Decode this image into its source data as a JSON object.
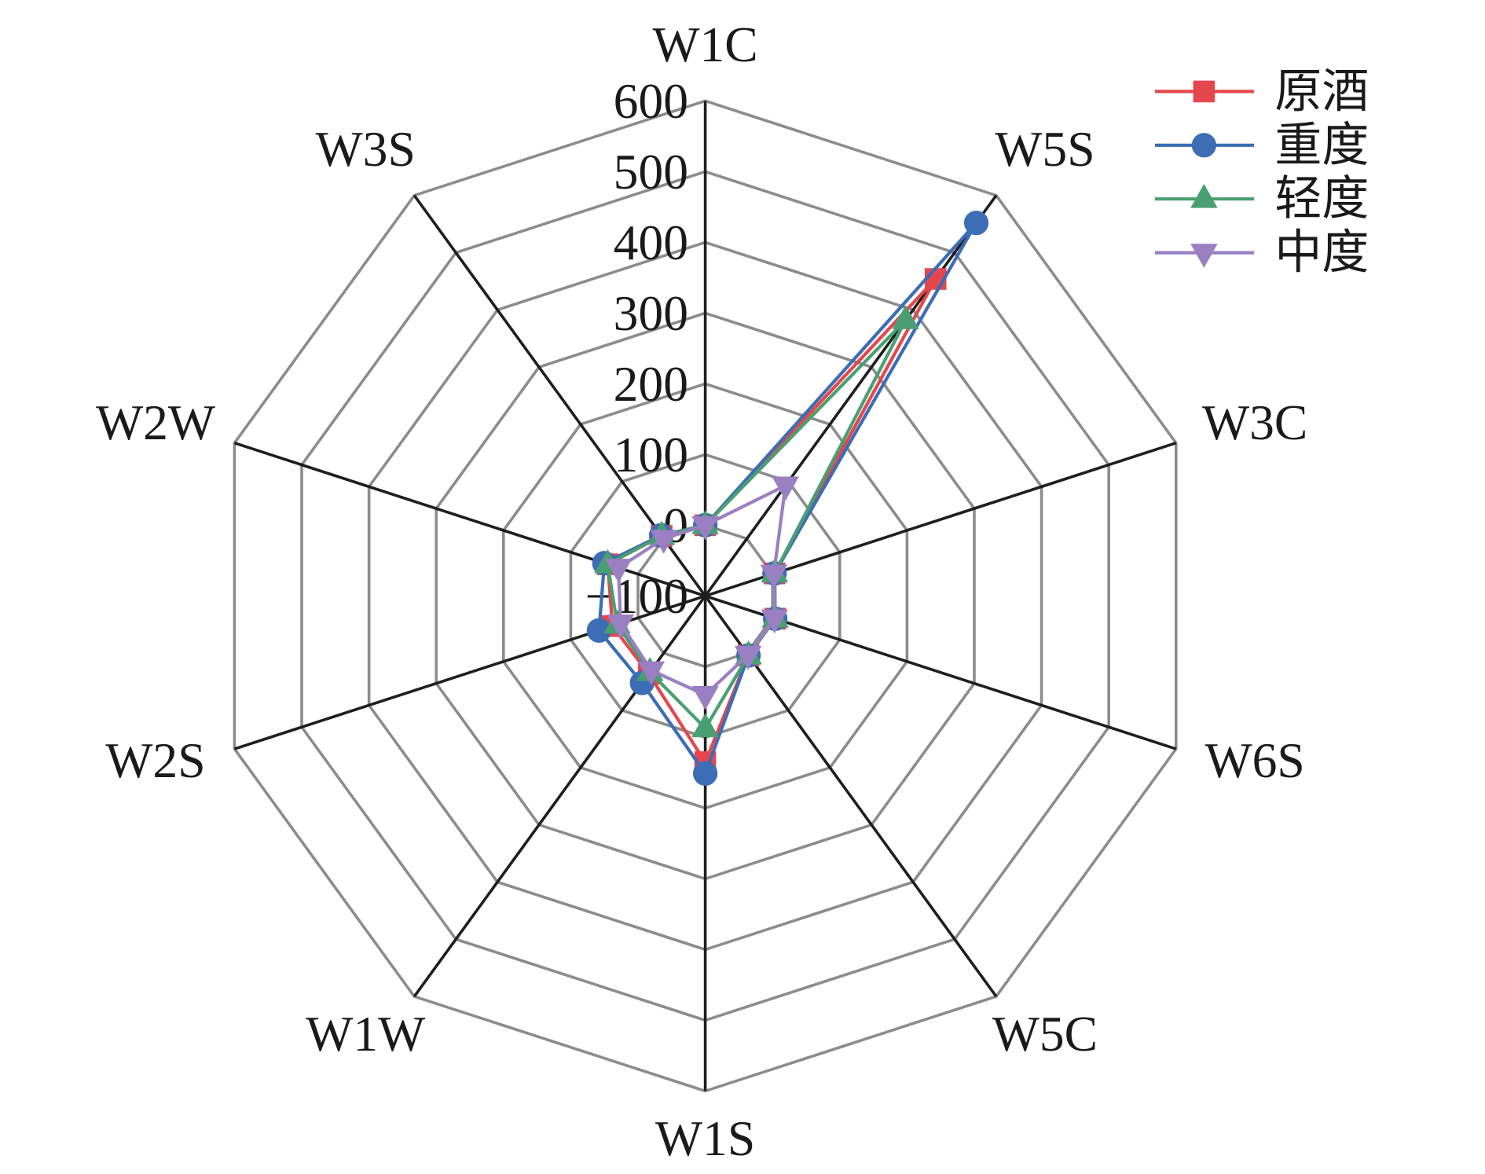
{
  "chart_data": {
    "type": "radar",
    "categories": [
      "W1C",
      "W5S",
      "W3C",
      "W6S",
      "W5C",
      "W1S",
      "W1W",
      "W2S",
      "W2W",
      "W3S"
    ],
    "rlim": [
      -100,
      600
    ],
    "ticks": [
      -100,
      0,
      100,
      200,
      300,
      400,
      500,
      600
    ],
    "tick_labels": [
      "−100",
      "0",
      "100",
      "200",
      "300",
      "400",
      "500",
      "600"
    ],
    "grid": true,
    "grid_color": "#8c8c8c",
    "spoke_color": "#1e1e1e",
    "legend": "top-right",
    "series": [
      {
        "name": "原酒",
        "color": "#e5474c",
        "marker": "square",
        "values": [
          0,
          454,
          3,
          4,
          4,
          135,
          36,
          38,
          45,
          5
        ]
      },
      {
        "name": "重度",
        "color": "#3c6db5",
        "marker": "circle",
        "values": [
          0,
          552,
          3,
          4,
          4,
          151,
          52,
          58,
          50,
          6
        ]
      },
      {
        "name": "轻度",
        "color": "#4a9f72",
        "marker": "triangle-up",
        "values": [
          0,
          382,
          3,
          4,
          4,
          87,
          33,
          31,
          45,
          5
        ]
      },
      {
        "name": "中度",
        "color": "#9a7fc2",
        "marker": "triangle-down",
        "values": [
          0,
          93,
          2,
          3,
          3,
          40,
          30,
          26,
          29,
          0
        ]
      }
    ]
  }
}
